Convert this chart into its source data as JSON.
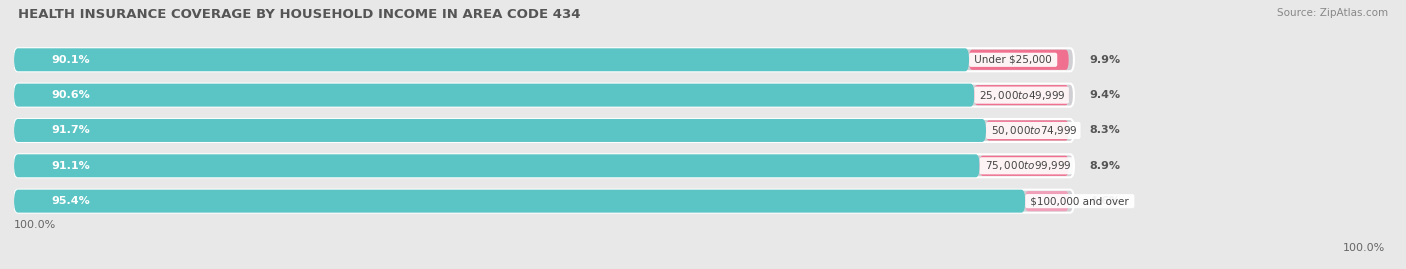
{
  "title": "HEALTH INSURANCE COVERAGE BY HOUSEHOLD INCOME IN AREA CODE 434",
  "source": "Source: ZipAtlas.com",
  "categories": [
    "Under $25,000",
    "$25,000 to $49,999",
    "$50,000 to $74,999",
    "$75,000 to $99,999",
    "$100,000 and over"
  ],
  "with_coverage": [
    90.1,
    90.6,
    91.7,
    91.1,
    95.4
  ],
  "without_coverage": [
    9.9,
    9.4,
    8.3,
    8.9,
    4.6
  ],
  "color_with": "#5bc4c4",
  "color_without": "#f07090",
  "color_without_last": "#f0a0b8",
  "bg_color": "#e8e8e8",
  "bar_container_color": "#d8d8dc",
  "title_fontsize": 9.5,
  "source_fontsize": 7.5,
  "label_fontsize": 8,
  "legend_fontsize": 8,
  "axis_label_fontsize": 8
}
